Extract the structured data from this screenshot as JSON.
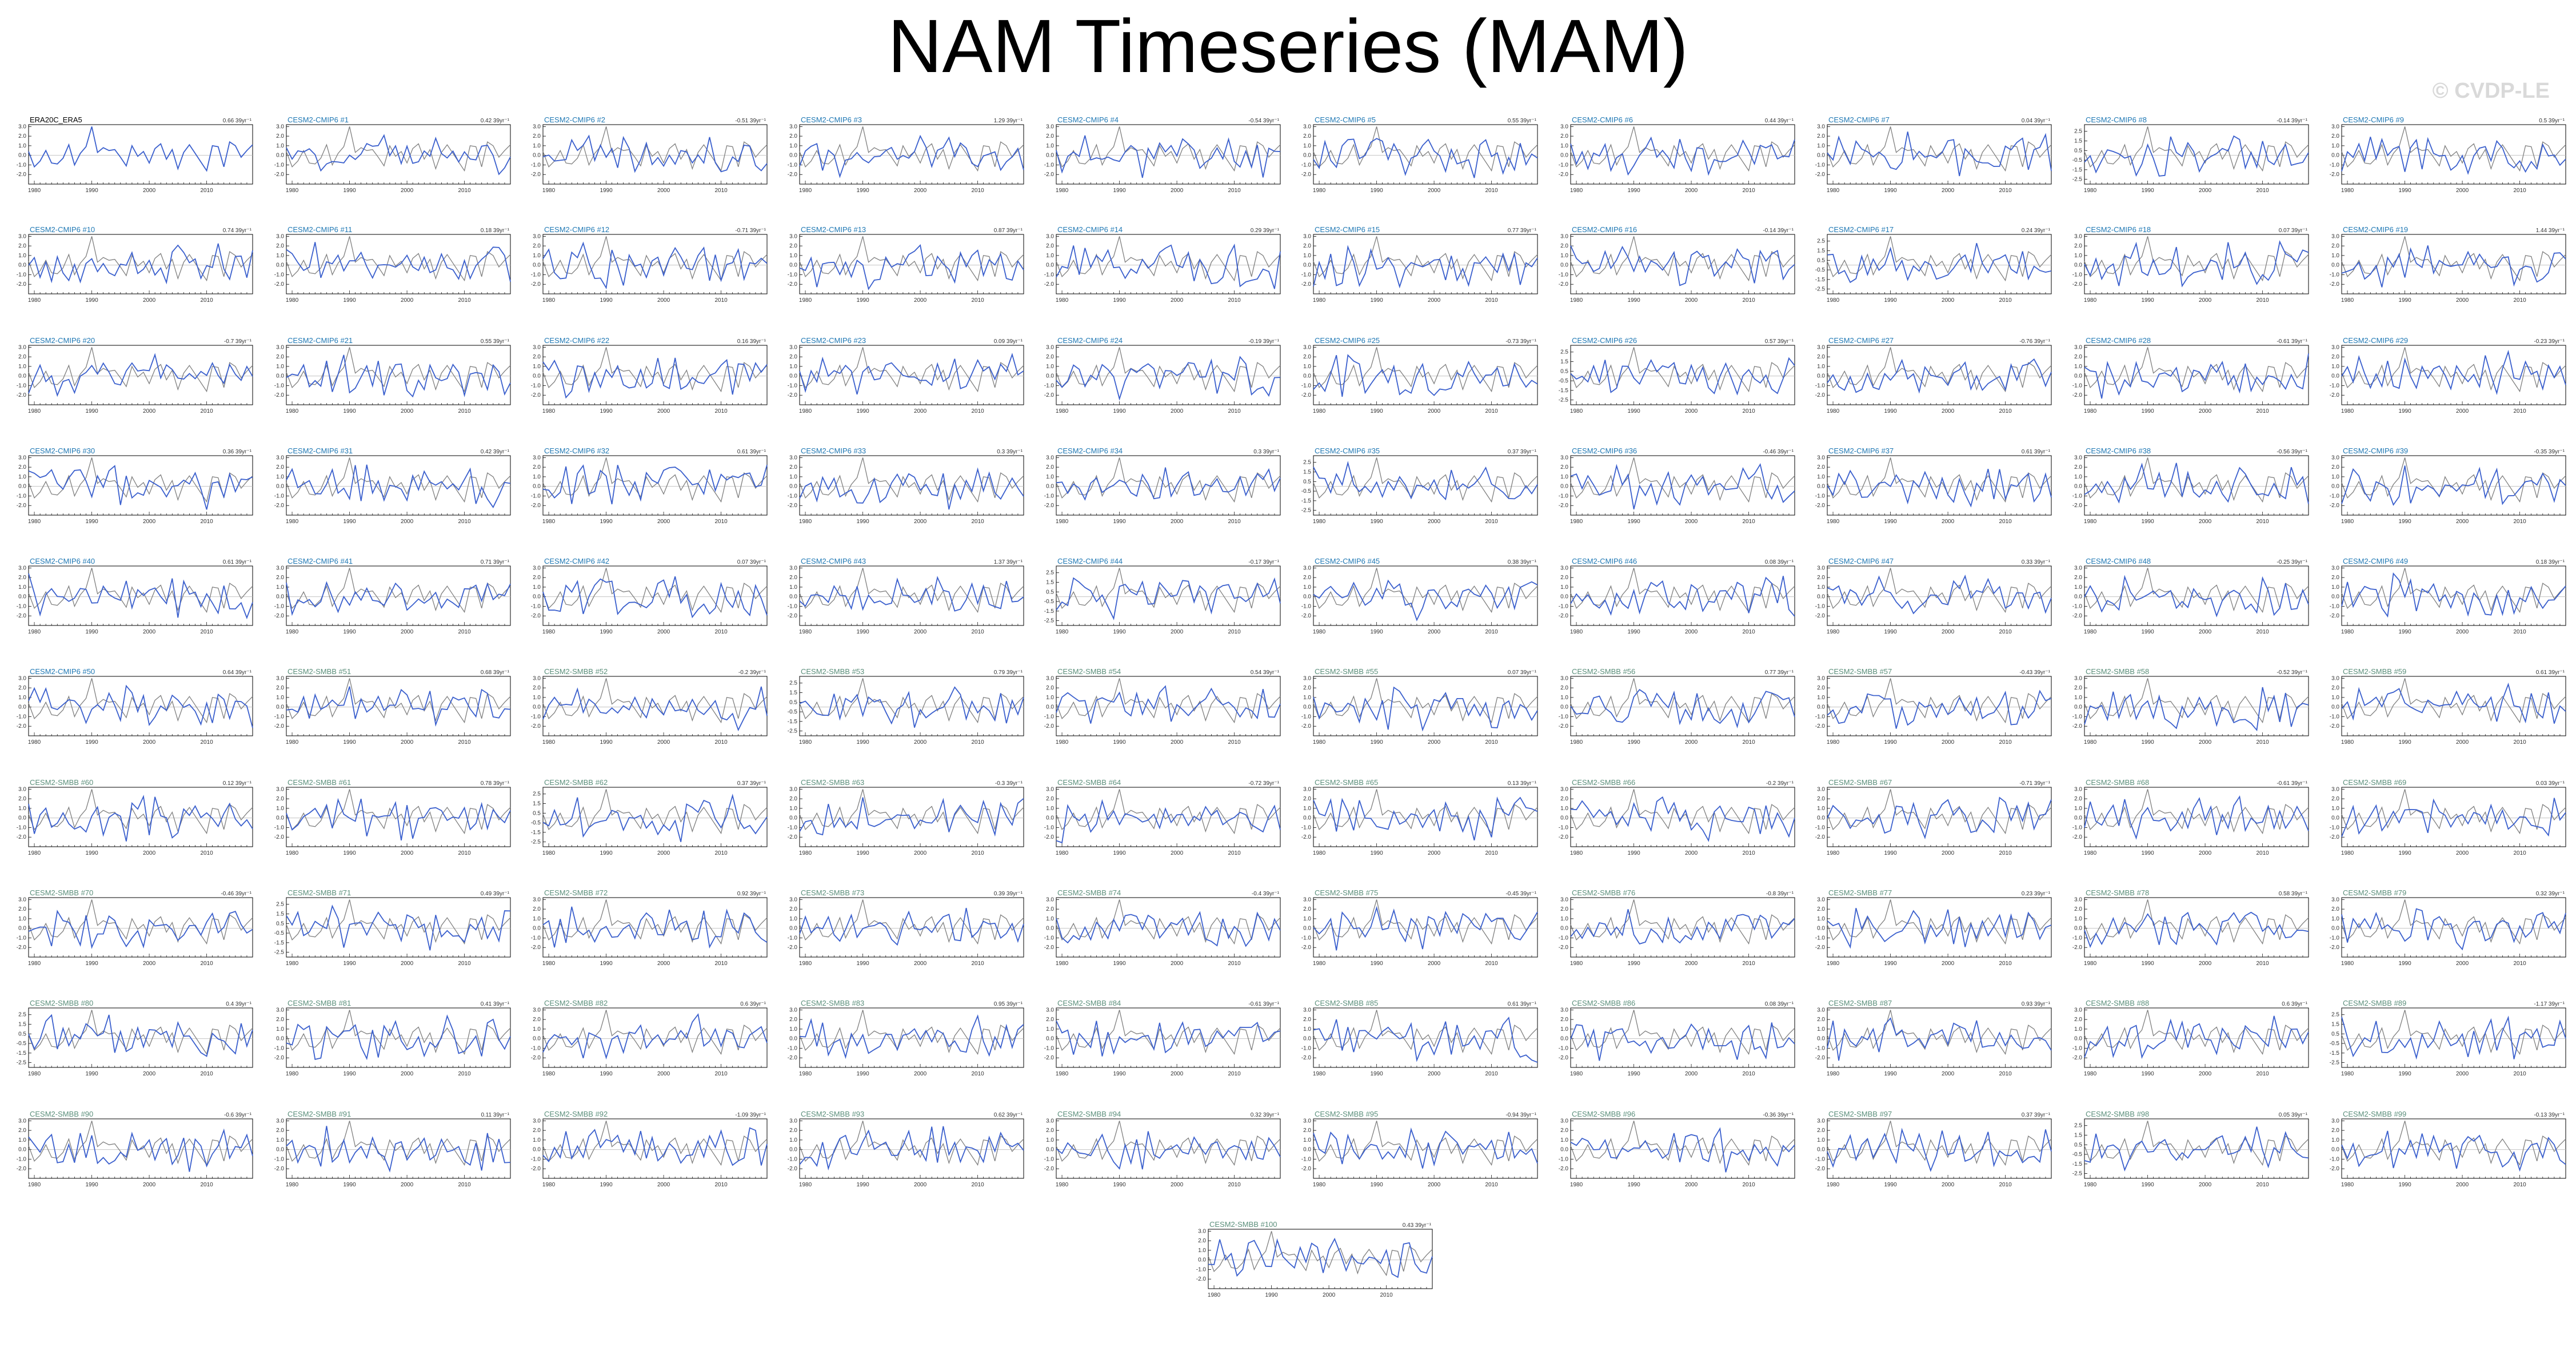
{
  "title": "NAM Timeseries (MAM)",
  "watermark": "© CVDP-LE",
  "colors": {
    "observed_line": "#7f7f7f",
    "member_line": "#3a5fcd",
    "title_cmip6": "#1f78b4",
    "title_smbb": "#5b8f7b",
    "title_obs": "#000000",
    "axes": "#000000"
  },
  "chart_data": {
    "type": "line",
    "layout": "small-multiples",
    "x_range": [
      1979,
      2018
    ],
    "x_ticks": [
      1980,
      1990,
      2000,
      2010
    ],
    "ylim": [
      -3,
      3.2
    ],
    "y_ticks": [
      3.0,
      2.0,
      1.0,
      0.0,
      -1.0,
      -2.0
    ],
    "y_ticks_alt": [
      2.5,
      1.5,
      0.5,
      -0.5,
      -1.5,
      -2.5
    ],
    "trend_unit": "39yr",
    "observed": {
      "name": "ERA20C_ERA5",
      "trend": "0.66",
      "x": [
        1979,
        1980,
        1981,
        1982,
        1983,
        1984,
        1985,
        1986,
        1987,
        1988,
        1989,
        1990,
        1991,
        1992,
        1993,
        1994,
        1995,
        1996,
        1997,
        1998,
        1999,
        2000,
        2001,
        2002,
        2003,
        2004,
        2005,
        2006,
        2007,
        2008,
        2009,
        2010,
        2011,
        2012,
        2013,
        2014,
        2015,
        2016,
        2017,
        2018
      ],
      "values": [
        0.4,
        -1.2,
        -0.6,
        0.5,
        -0.8,
        -0.9,
        -0.3,
        1.1,
        -1.0,
        0.2,
        0.9,
        3.0,
        0.3,
        0.8,
        0.5,
        0.6,
        -0.2,
        -1.1,
        1.0,
        -0.1,
        0.4,
        -0.8,
        0.7,
        1.2,
        -0.4,
        0.6,
        -1.4,
        0.3,
        1.1,
        0.2,
        -0.7,
        -1.6,
        1.0,
        0.9,
        -1.2,
        1.4,
        1.0,
        -0.2,
        0.5,
        1.1
      ]
    },
    "series": [
      {
        "label": "CESM2-CMIP6 #1",
        "trend": "0.42"
      },
      {
        "label": "CESM2-CMIP6 #2",
        "trend": "-0.51"
      },
      {
        "label": "CESM2-CMIP6 #3",
        "trend": "1.29"
      },
      {
        "label": "CESM2-CMIP6 #4",
        "trend": "-0.54"
      },
      {
        "label": "CESM2-CMIP6 #5",
        "trend": "0.55"
      },
      {
        "label": "CESM2-CMIP6 #6",
        "trend": "0.44"
      },
      {
        "label": "CESM2-CMIP6 #7",
        "trend": "0.04"
      },
      {
        "label": "CESM2-CMIP6 #8",
        "trend": "-0.14"
      },
      {
        "label": "CESM2-CMIP6 #9",
        "trend": "0.5"
      },
      {
        "label": "CESM2-CMIP6 #10",
        "trend": "0.74"
      },
      {
        "label": "CESM2-CMIP6 #11",
        "trend": "0.18"
      },
      {
        "label": "CESM2-CMIP6 #12",
        "trend": "-0.71"
      },
      {
        "label": "CESM2-CMIP6 #13",
        "trend": "0.87"
      },
      {
        "label": "CESM2-CMIP6 #14",
        "trend": "0.29"
      },
      {
        "label": "CESM2-CMIP6 #15",
        "trend": "0.77"
      },
      {
        "label": "CESM2-CMIP6 #16",
        "trend": "-0.14"
      },
      {
        "label": "CESM2-CMIP6 #17",
        "trend": "0.24"
      },
      {
        "label": "CESM2-CMIP6 #18",
        "trend": "0.07"
      },
      {
        "label": "CESM2-CMIP6 #19",
        "trend": "1.44"
      },
      {
        "label": "CESM2-CMIP6 #20",
        "trend": "-0.7"
      },
      {
        "label": "CESM2-CMIP6 #21",
        "trend": "0.55"
      },
      {
        "label": "CESM2-CMIP6 #22",
        "trend": "0.16"
      },
      {
        "label": "CESM2-CMIP6 #23",
        "trend": "0.09"
      },
      {
        "label": "CESM2-CMIP6 #24",
        "trend": "-0.19"
      },
      {
        "label": "CESM2-CMIP6 #25",
        "trend": "-0.73"
      },
      {
        "label": "CESM2-CMIP6 #26",
        "trend": "0.57"
      },
      {
        "label": "CESM2-CMIP6 #27",
        "trend": "-0.76"
      },
      {
        "label": "CESM2-CMIP6 #28",
        "trend": "-0.61"
      },
      {
        "label": "CESM2-CMIP6 #29",
        "trend": "-0.23"
      },
      {
        "label": "CESM2-CMIP6 #30",
        "trend": "0.36"
      },
      {
        "label": "CESM2-CMIP6 #31",
        "trend": "0.42"
      },
      {
        "label": "CESM2-CMIP6 #32",
        "trend": "0.61"
      },
      {
        "label": "CESM2-CMIP6 #33",
        "trend": "0.3"
      },
      {
        "label": "CESM2-CMIP6 #34",
        "trend": "0.3"
      },
      {
        "label": "CESM2-CMIP6 #35",
        "trend": "0.37"
      },
      {
        "label": "CESM2-CMIP6 #36",
        "trend": "-0.46"
      },
      {
        "label": "CESM2-CMIP6 #37",
        "trend": "0.61"
      },
      {
        "label": "CESM2-CMIP6 #38",
        "trend": "-0.56"
      },
      {
        "label": "CESM2-CMIP6 #39",
        "trend": "-0.35"
      },
      {
        "label": "CESM2-CMIP6 #40",
        "trend": "0.61"
      },
      {
        "label": "CESM2-CMIP6 #41",
        "trend": "0.71"
      },
      {
        "label": "CESM2-CMIP6 #42",
        "trend": "0.07"
      },
      {
        "label": "CESM2-CMIP6 #43",
        "trend": "1.37"
      },
      {
        "label": "CESM2-CMIP6 #44",
        "trend": "-0.17"
      },
      {
        "label": "CESM2-CMIP6 #45",
        "trend": "0.38"
      },
      {
        "label": "CESM2-CMIP6 #46",
        "trend": "0.08"
      },
      {
        "label": "CESM2-CMIP6 #47",
        "trend": "0.33"
      },
      {
        "label": "CESM2-CMIP6 #48",
        "trend": "-0.25"
      },
      {
        "label": "CESM2-CMIP6 #49",
        "trend": "0.18"
      },
      {
        "label": "CESM2-CMIP6 #50",
        "trend": "0.64"
      },
      {
        "label": "CESM2-SMBB #51",
        "trend": "0.68"
      },
      {
        "label": "CESM2-SMBB #52",
        "trend": "-0.2"
      },
      {
        "label": "CESM2-SMBB #53",
        "trend": "0.79"
      },
      {
        "label": "CESM2-SMBB #54",
        "trend": "0.54"
      },
      {
        "label": "CESM2-SMBB #55",
        "trend": "0.07"
      },
      {
        "label": "CESM2-SMBB #56",
        "trend": "0.77"
      },
      {
        "label": "CESM2-SMBB #57",
        "trend": "-0.43"
      },
      {
        "label": "CESM2-SMBB #58",
        "trend": "-0.52"
      },
      {
        "label": "CESM2-SMBB #59",
        "trend": "0.61"
      },
      {
        "label": "CESM2-SMBB #60",
        "trend": "0.12"
      },
      {
        "label": "CESM2-SMBB #61",
        "trend": "0.78"
      },
      {
        "label": "CESM2-SMBB #62",
        "trend": "0.37"
      },
      {
        "label": "CESM2-SMBB #63",
        "trend": "-0.3"
      },
      {
        "label": "CESM2-SMBB #64",
        "trend": "-0.72"
      },
      {
        "label": "CESM2-SMBB #65",
        "trend": "0.13"
      },
      {
        "label": "CESM2-SMBB #66",
        "trend": "-0.2"
      },
      {
        "label": "CESM2-SMBB #67",
        "trend": "-0.71"
      },
      {
        "label": "CESM2-SMBB #68",
        "trend": "-0.61"
      },
      {
        "label": "CESM2-SMBB #69",
        "trend": "0.03"
      },
      {
        "label": "CESM2-SMBB #70",
        "trend": "-0.46"
      },
      {
        "label": "CESM2-SMBB #71",
        "trend": "0.49"
      },
      {
        "label": "CESM2-SMBB #72",
        "trend": "0.92"
      },
      {
        "label": "CESM2-SMBB #73",
        "trend": "0.39"
      },
      {
        "label": "CESM2-SMBB #74",
        "trend": "-0.4"
      },
      {
        "label": "CESM2-SMBB #75",
        "trend": "-0.45"
      },
      {
        "label": "CESM2-SMBB #76",
        "trend": "-0.8"
      },
      {
        "label": "CESM2-SMBB #77",
        "trend": "0.23"
      },
      {
        "label": "CESM2-SMBB #78",
        "trend": "0.58"
      },
      {
        "label": "CESM2-SMBB #79",
        "trend": "0.32"
      },
      {
        "label": "CESM2-SMBB #80",
        "trend": "0.4"
      },
      {
        "label": "CESM2-SMBB #81",
        "trend": "0.41"
      },
      {
        "label": "CESM2-SMBB #82",
        "trend": "0.6"
      },
      {
        "label": "CESM2-SMBB #83",
        "trend": "0.95"
      },
      {
        "label": "CESM2-SMBB #84",
        "trend": "-0.61"
      },
      {
        "label": "CESM2-SMBB #85",
        "trend": "0.61"
      },
      {
        "label": "CESM2-SMBB #86",
        "trend": "0.08"
      },
      {
        "label": "CESM2-SMBB #87",
        "trend": "0.93"
      },
      {
        "label": "CESM2-SMBB #88",
        "trend": "0.6"
      },
      {
        "label": "CESM2-SMBB #89",
        "trend": "-1.17"
      },
      {
        "label": "CESM2-SMBB #90",
        "trend": "-0.6"
      },
      {
        "label": "CESM2-SMBB #91",
        "trend": "0.11"
      },
      {
        "label": "CESM2-SMBB #92",
        "trend": "-1.09"
      },
      {
        "label": "CESM2-SMBB #93",
        "trend": "0.62"
      },
      {
        "label": "CESM2-SMBB #94",
        "trend": "0.32"
      },
      {
        "label": "CESM2-SMBB #95",
        "trend": "-0.94"
      },
      {
        "label": "CESM2-SMBB #96",
        "trend": "-0.36"
      },
      {
        "label": "CESM2-SMBB #97",
        "trend": "0.37"
      },
      {
        "label": "CESM2-SMBB #98",
        "trend": "0.05"
      },
      {
        "label": "CESM2-SMBB #99",
        "trend": "-0.13"
      },
      {
        "label": "CESM2-SMBB #100",
        "trend": "0.43"
      }
    ]
  }
}
